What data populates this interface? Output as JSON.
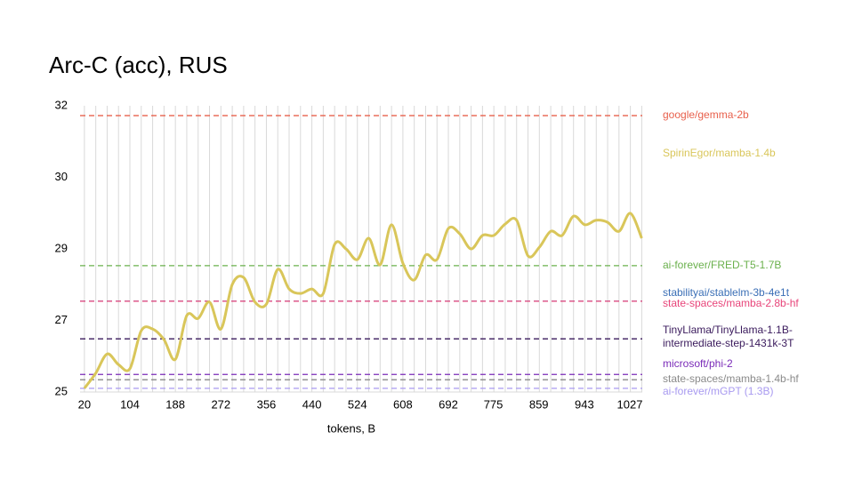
{
  "chart_data": {
    "type": "line",
    "title": "Arc-C (acc), RUS",
    "x_label": "tokens, B",
    "x": [
      20,
      41,
      62,
      83,
      104,
      125,
      146,
      167,
      188,
      209,
      230,
      251,
      272,
      293,
      314,
      335,
      356,
      377,
      398,
      419,
      440,
      461,
      482,
      503,
      524,
      545,
      566,
      587,
      608,
      629,
      650,
      671,
      692,
      713,
      734,
      755,
      776,
      797,
      818,
      839,
      860,
      881,
      902,
      923,
      944,
      965,
      986,
      1007,
      1028,
      1049
    ],
    "xlim": [
      12,
      1050
    ],
    "xticks": [
      20,
      104,
      188,
      272,
      356,
      440,
      524,
      608,
      692,
      775,
      859,
      943,
      1027
    ],
    "ylim": [
      25,
      32
    ],
    "yticks": [
      25,
      {
        "value": 26.75,
        "label": "27"
      },
      {
        "value": 28.5,
        "label": "29"
      },
      {
        "value": 30.25,
        "label": "30"
      },
      32
    ],
    "grid": true,
    "series": [
      {
        "name": "SpirinEgor/mamba-1.4b",
        "color": "#d9c65a",
        "values": [
          25.09,
          25.46,
          25.93,
          25.67,
          25.57,
          26.5,
          26.54,
          26.28,
          25.8,
          26.87,
          26.8,
          27.2,
          26.54,
          27.63,
          27.8,
          27.2,
          27.15,
          28.0,
          27.52,
          27.41,
          27.52,
          27.41,
          28.61,
          28.5,
          28.24,
          28.76,
          28.11,
          29.09,
          28.15,
          27.74,
          28.35,
          28.24,
          29.0,
          28.87,
          28.5,
          28.83,
          28.83,
          29.11,
          29.2,
          28.33,
          28.54,
          28.93,
          28.83,
          29.3,
          29.09,
          29.2,
          29.15,
          28.93,
          29.37,
          28.76
        ]
      }
    ],
    "reference_lines": [
      {
        "name": "google/gemma-2b",
        "color": "#e8604c",
        "value": 31.76
      },
      {
        "name": "ai-forever/FRED-T5-1.7B",
        "color": "#6ab04c",
        "value": 28.09
      },
      {
        "name": "stabilityai/stablelm-3b-4e1t",
        "color": "#3b6fb6",
        "value": 27.22
      },
      {
        "name": "state-spaces/mamba-2.8b-hf",
        "color": "#e8457a",
        "value": 27.22
      },
      {
        "name": "TinyLlama/TinyLlama-1.1B-intermediate-step-1431k-3T",
        "color": "#3a1a5c",
        "value": 26.3
      },
      {
        "name": "microsoft/phi-2",
        "color": "#7a2ab8",
        "value": 25.43
      },
      {
        "name": "state-spaces/mamba-1.4b-hf",
        "color": "#8a8a8a",
        "value": 25.3
      },
      {
        "name": "ai-forever/mGPT (1.3B)",
        "color": "#a89af0",
        "value": 25.09
      }
    ]
  }
}
